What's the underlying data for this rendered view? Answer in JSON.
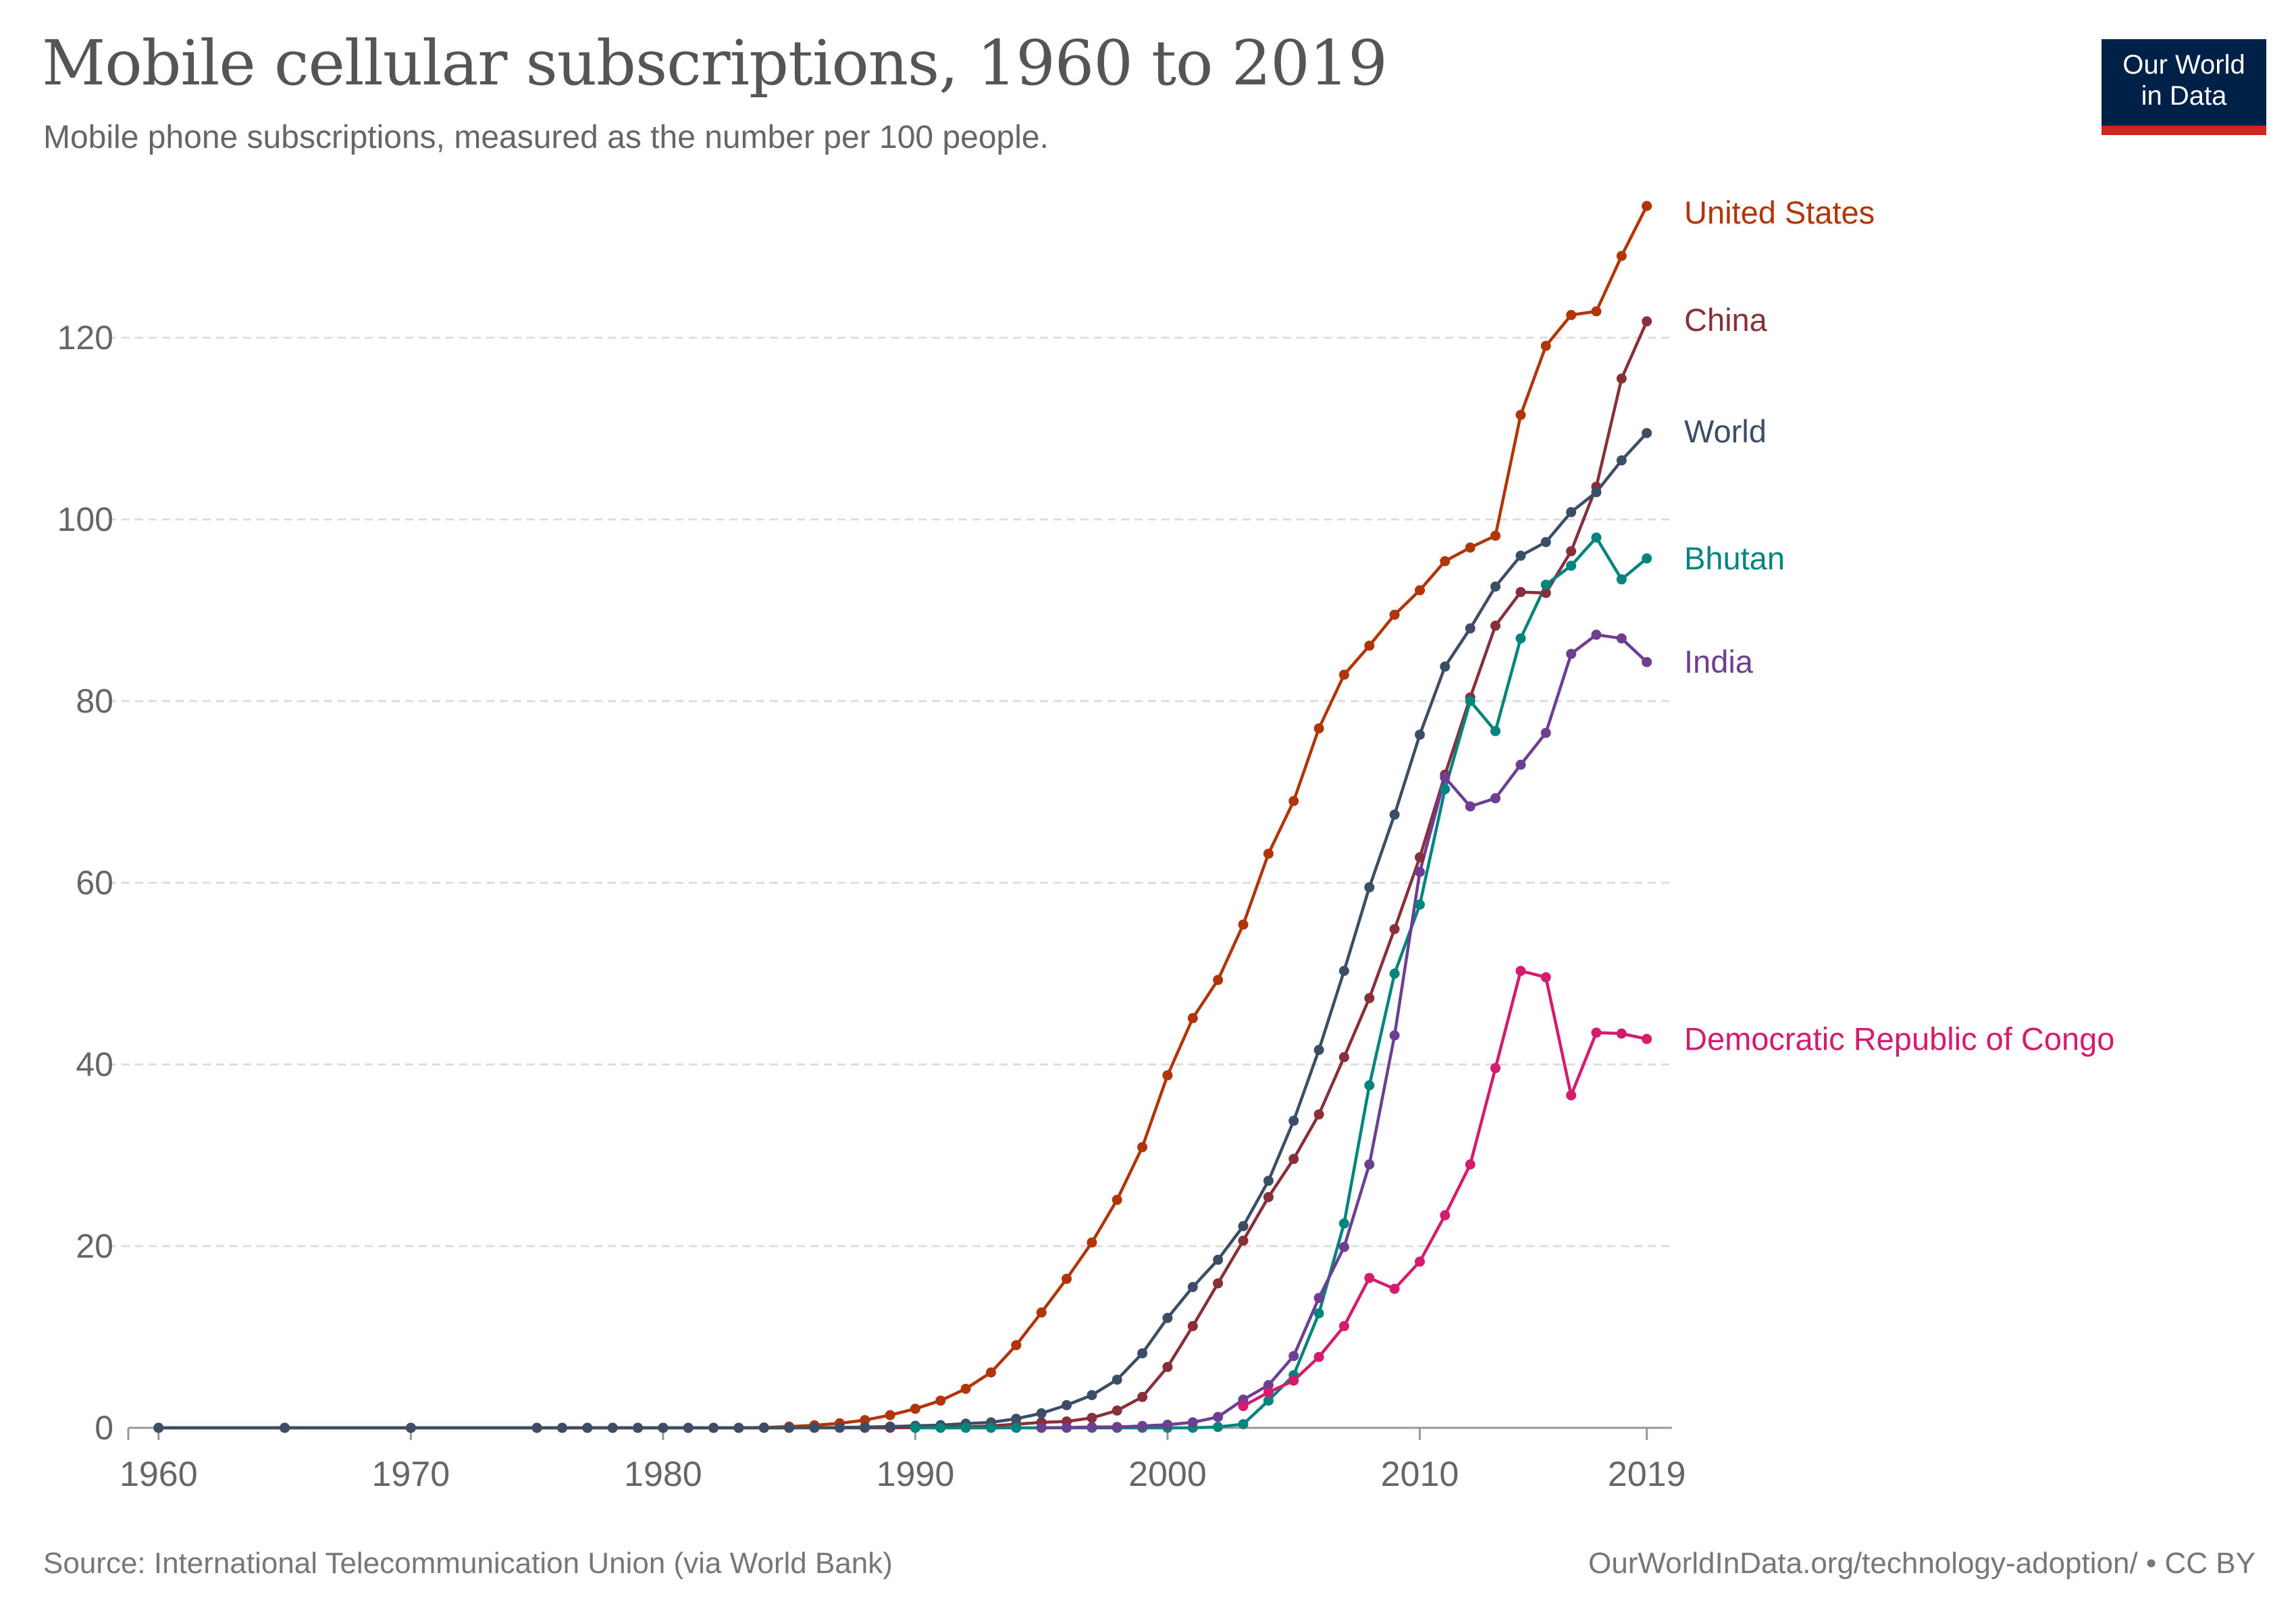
{
  "title": "Mobile cellular subscriptions, 1960 to 2019",
  "subtitle": "Mobile phone subscriptions, measured as the number per 100 people.",
  "logo": {
    "line1": "Our World",
    "line2": "in Data"
  },
  "footer": {
    "source": "Source: International Telecommunication Union (via World Bank)",
    "link": "OurWorldInData.org/technology-adoption/ • CC BY"
  },
  "chart_data": {
    "type": "line",
    "title": "Mobile cellular subscriptions, 1960 to 2019",
    "xlabel": "",
    "ylabel": "",
    "xlim": [
      1960,
      2019
    ],
    "ylim": [
      0,
      135
    ],
    "y_ticks": [
      0,
      20,
      40,
      60,
      80,
      100,
      120
    ],
    "x_ticks": [
      {
        "value": 1960,
        "label": "1960"
      },
      {
        "value": 1970,
        "label": "1970"
      },
      {
        "value": 1980,
        "label": "1980"
      },
      {
        "value": 1990,
        "label": "1990"
      },
      {
        "value": 2000,
        "label": "2000"
      },
      {
        "value": 2010,
        "label": "2010"
      },
      {
        "value": 2019,
        "label": "2019"
      }
    ],
    "grid": true,
    "legend": "inline-right",
    "series": [
      {
        "name": "United States",
        "color": "#b13507",
        "x": [
          1960,
          1965,
          1970,
          1975,
          1976,
          1977,
          1978,
          1979,
          1980,
          1981,
          1982,
          1983,
          1984,
          1985,
          1986,
          1987,
          1988,
          1989,
          1990,
          1991,
          1992,
          1993,
          1994,
          1995,
          1996,
          1997,
          1998,
          1999,
          2000,
          2001,
          2002,
          2003,
          2004,
          2005,
          2006,
          2007,
          2008,
          2009,
          2010,
          2011,
          2012,
          2013,
          2014,
          2015,
          2016,
          2017,
          2018,
          2019
        ],
        "y": [
          0,
          0,
          0,
          0,
          0,
          0,
          0,
          0,
          0,
          0,
          0,
          0,
          0.04,
          0.14,
          0.28,
          0.5,
          0.85,
          1.4,
          2.1,
          3.0,
          4.3,
          6.1,
          9.1,
          12.7,
          16.4,
          20.4,
          25.1,
          30.9,
          38.8,
          45.1,
          49.3,
          55.4,
          63.2,
          69.0,
          77.0,
          82.9,
          86.1,
          89.5,
          92.2,
          95.4,
          96.9,
          98.2,
          111.5,
          119.1,
          122.5,
          122.9,
          129.0,
          134.5
        ]
      },
      {
        "name": "China",
        "color": "#883039",
        "x": [
          1960,
          1965,
          1970,
          1975,
          1976,
          1977,
          1978,
          1979,
          1980,
          1981,
          1982,
          1983,
          1984,
          1985,
          1986,
          1987,
          1988,
          1989,
          1990,
          1991,
          1992,
          1993,
          1994,
          1995,
          1996,
          1997,
          1998,
          1999,
          2000,
          2001,
          2002,
          2003,
          2004,
          2005,
          2006,
          2007,
          2008,
          2009,
          2010,
          2011,
          2012,
          2013,
          2014,
          2015,
          2016,
          2017,
          2018,
          2019
        ],
        "y": [
          0,
          0,
          0,
          0,
          0,
          0,
          0,
          0,
          0,
          0,
          0,
          0,
          0,
          0,
          0,
          0,
          0,
          0.01,
          0.02,
          0.04,
          0.1,
          0.2,
          0.4,
          0.6,
          0.7,
          1.1,
          1.9,
          3.4,
          6.7,
          11.2,
          15.9,
          20.6,
          25.4,
          29.6,
          34.5,
          40.8,
          47.3,
          54.9,
          62.8,
          71.9,
          80.4,
          88.3,
          92.0,
          91.9,
          96.5,
          103.6,
          115.5,
          121.8
        ]
      },
      {
        "name": "World",
        "color": "#3c4e66",
        "x": [
          1960,
          1965,
          1970,
          1975,
          1976,
          1977,
          1978,
          1979,
          1980,
          1981,
          1982,
          1983,
          1984,
          1985,
          1986,
          1987,
          1988,
          1989,
          1990,
          1991,
          1992,
          1993,
          1994,
          1995,
          1996,
          1997,
          1998,
          1999,
          2000,
          2001,
          2002,
          2003,
          2004,
          2005,
          2006,
          2007,
          2008,
          2009,
          2010,
          2011,
          2012,
          2013,
          2014,
          2015,
          2016,
          2017,
          2018,
          2019
        ],
        "y": [
          0,
          0,
          0,
          0,
          0,
          0,
          0,
          0,
          0,
          0,
          0,
          0,
          0,
          0.01,
          0.02,
          0.04,
          0.08,
          0.14,
          0.22,
          0.3,
          0.46,
          0.6,
          1.0,
          1.6,
          2.5,
          3.6,
          5.3,
          8.2,
          12.1,
          15.5,
          18.5,
          22.2,
          27.2,
          33.8,
          41.6,
          50.3,
          59.5,
          67.5,
          76.3,
          83.8,
          88.0,
          92.6,
          96.0,
          97.5,
          100.8,
          103.0,
          106.5,
          109.5
        ]
      },
      {
        "name": "Bhutan",
        "color": "#00847e",
        "x": [
          1990,
          1991,
          1992,
          1993,
          1994,
          1995,
          1996,
          1997,
          1998,
          1999,
          2000,
          2001,
          2002,
          2003,
          2004,
          2005,
          2006,
          2007,
          2008,
          2009,
          2010,
          2011,
          2012,
          2013,
          2014,
          2015,
          2016,
          2017,
          2018,
          2019
        ],
        "y": [
          0,
          0,
          0,
          0,
          0,
          0,
          0,
          0,
          0,
          0,
          0,
          0,
          0.1,
          0.4,
          3.0,
          5.8,
          12.6,
          22.5,
          37.7,
          50.0,
          57.6,
          70.3,
          80.0,
          76.7,
          86.9,
          92.8,
          94.9,
          98.0,
          93.4,
          95.7
        ]
      },
      {
        "name": "India",
        "color": "#6d3e91",
        "x": [
          1995,
          1996,
          1997,
          1998,
          1999,
          2000,
          2001,
          2002,
          2003,
          2004,
          2005,
          2006,
          2007,
          2008,
          2009,
          2010,
          2011,
          2012,
          2013,
          2014,
          2015,
          2016,
          2017,
          2018,
          2019
        ],
        "y": [
          0.01,
          0.03,
          0.09,
          0.1,
          0.2,
          0.34,
          0.6,
          1.2,
          3.1,
          4.7,
          7.9,
          14.3,
          19.9,
          29.0,
          43.2,
          61.2,
          71.6,
          68.4,
          69.3,
          73.0,
          76.5,
          85.2,
          87.3,
          86.9,
          84.3
        ]
      },
      {
        "name": "Democratic Republic of Congo",
        "color": "#d41b6d",
        "x": [
          2003,
          2004,
          2005,
          2006,
          2007,
          2008,
          2009,
          2010,
          2011,
          2012,
          2013,
          2014,
          2015,
          2016,
          2017,
          2018,
          2019
        ],
        "y": [
          2.4,
          3.9,
          5.2,
          7.8,
          11.2,
          16.5,
          15.3,
          18.3,
          23.4,
          29.0,
          39.6,
          50.3,
          49.6,
          36.6,
          43.5,
          43.4,
          42.8
        ]
      }
    ],
    "series_labels": [
      {
        "name": "United States",
        "text": "United States"
      },
      {
        "name": "China",
        "text": "China"
      },
      {
        "name": "World",
        "text": "World"
      },
      {
        "name": "Bhutan",
        "text": "Bhutan"
      },
      {
        "name": "India",
        "text": "India"
      },
      {
        "name": "Democratic Republic of Congo",
        "text": "Democratic Republic of Congo"
      }
    ]
  }
}
